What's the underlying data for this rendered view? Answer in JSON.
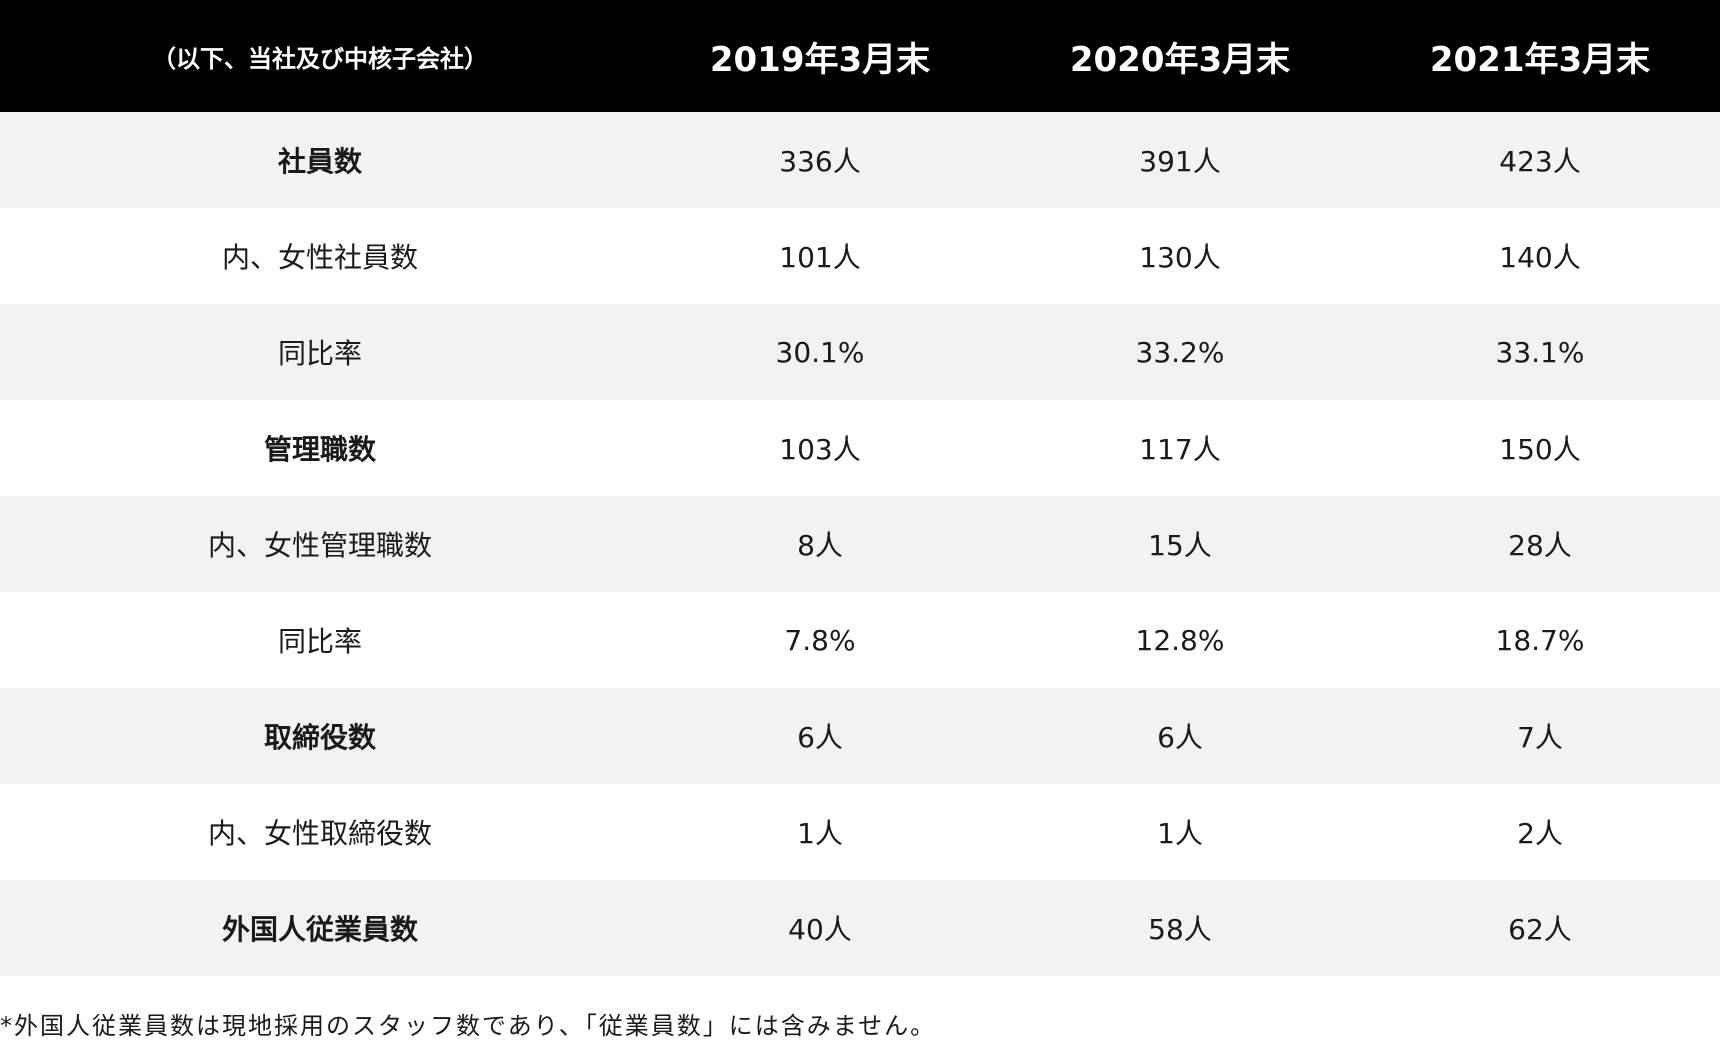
{
  "table": {
    "header": {
      "scope_label": "（以下、当社及び中核子会社）",
      "columns": [
        "2019年3月末",
        "2020年3月末",
        "2021年3月末"
      ]
    },
    "rows": [
      {
        "label": "社員数",
        "values": [
          "336人",
          "391人",
          "423人"
        ]
      },
      {
        "label": "内、女性社員数",
        "values": [
          "101人",
          "130人",
          "140人"
        ]
      },
      {
        "label": "同比率",
        "values": [
          "30.1%",
          "33.2%",
          "33.1%"
        ]
      },
      {
        "label": "管理職数",
        "values": [
          "103人",
          "117人",
          "150人"
        ]
      },
      {
        "label": "内、女性管理職数",
        "values": [
          "8人",
          "15人",
          "28人"
        ]
      },
      {
        "label": "同比率",
        "values": [
          "7.8%",
          "12.8%",
          "18.7%"
        ]
      },
      {
        "label": "取締役数",
        "values": [
          "6人",
          "6人",
          "7人"
        ]
      },
      {
        "label": "内、女性取締役数",
        "values": [
          "1人",
          "1人",
          "2人"
        ]
      },
      {
        "label": "外国人従業員数",
        "values": [
          "40人",
          "58人",
          "62人"
        ]
      }
    ]
  },
  "footnote": "*外国人従業員数は現地採用のスタッフ数であり、「従業員数」には含みません。"
}
